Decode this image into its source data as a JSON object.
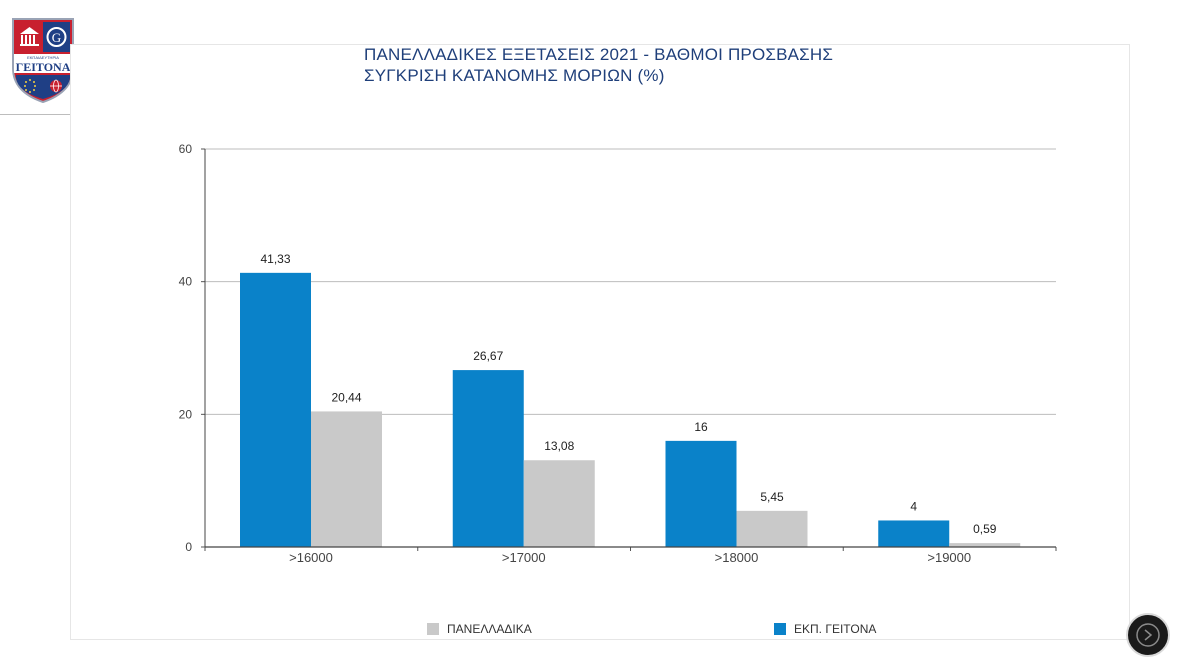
{
  "logo": {
    "top_text": "ΕΚΠΑΙΔΕΥΤΗΡΙΑ",
    "name": "ΓΕΙΤΟΝΑ",
    "colors": {
      "blue": "#1f3f85",
      "red": "#c8202f"
    },
    "icons": [
      "temple-icon",
      "monogram-icon",
      "eu-stars-icon",
      "globe-icon"
    ]
  },
  "header": {
    "title_line1": "ΠΑΝΕΛΛΑΔΙΚΕΣ ΕΞΕΤΑΣΕΙΣ 2021 - ΒΑΘΜΟΙ ΠΡΟΣΒΑΣΗΣ",
    "title_line2": "ΣΥΓΚΡΙΣΗ ΚΑΤΑΝΟΜΗΣ ΜΟΡΙΩΝ (%)"
  },
  "chart_data": {
    "type": "bar",
    "title": "ΠΑΝΕΛΛΑΔΙΚΕΣ ΕΞΕΤΑΣΕΙΣ 2021 - ΒΑΘΜΟΙ ΠΡΟΣΒΑΣΗΣ",
    "subtitle": "ΣΥΓΚΡΙΣΗ ΚΑΤΑΝΟΜΗΣ ΜΟΡΙΩΝ (%)",
    "categories": [
      ">16000",
      ">17000",
      ">18000",
      ">19000"
    ],
    "series": [
      {
        "name": "ΕΚΠ. ΓΕΙΤΟΝΑ",
        "color": "#0a82c9",
        "values": [
          41.33,
          26.67,
          16,
          4
        ],
        "labels": [
          "41,33",
          "26,67",
          "16",
          "4"
        ]
      },
      {
        "name": "ΠΑΝΕΛΛΑΔΙΚΑ",
        "color": "#c9c9c9",
        "values": [
          20.44,
          13.08,
          5.45,
          0.59
        ],
        "labels": [
          "20,44",
          "13,08",
          "5,45",
          "0,59"
        ]
      }
    ],
    "ylim": [
      0,
      60
    ],
    "yticks": [
      0,
      20,
      40,
      60
    ],
    "grid": true,
    "legend_position": "bottom",
    "legend_order": [
      "ΠΑΝΕΛΛΑΔΙΚΑ",
      "ΕΚΠ. ΓΕΙΤΟΝΑ"
    ],
    "xlabel": "",
    "ylabel": ""
  },
  "nav": {
    "icon": "circle-arrow-icon"
  }
}
